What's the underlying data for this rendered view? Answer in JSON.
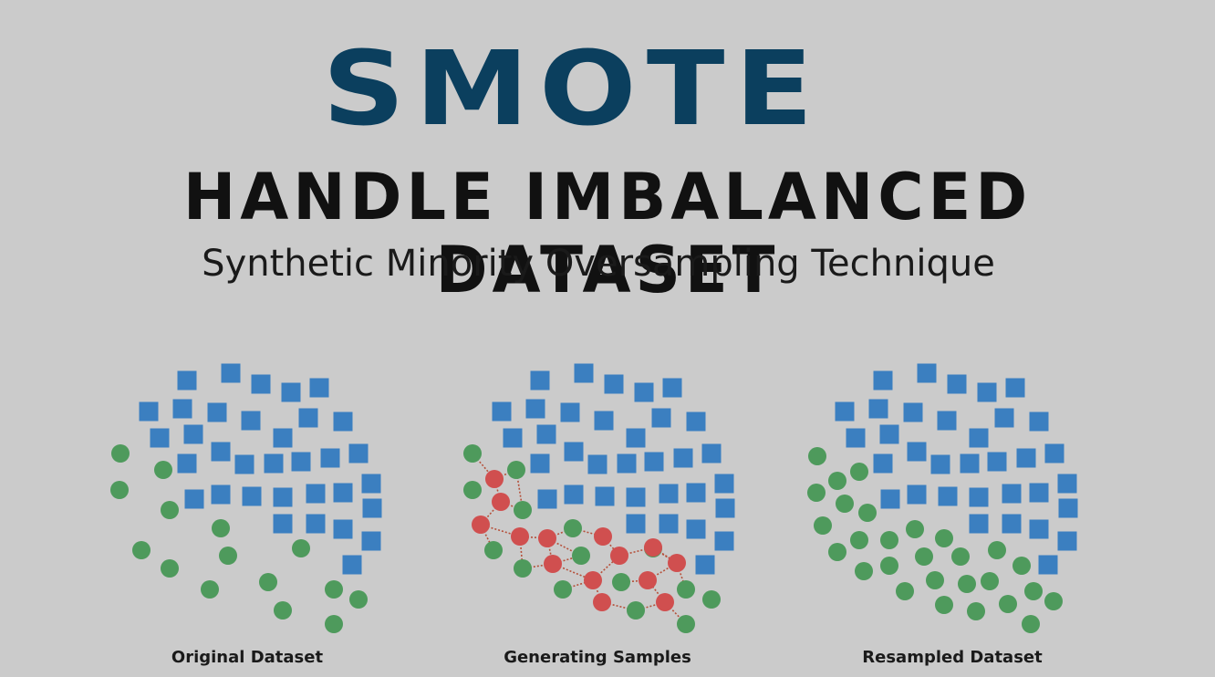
{
  "header": {
    "title": "SMOTE",
    "heading": "HANDLE IMBALANCED DATASET",
    "subtitle": "Synthetic Minority Oversampling Technique"
  },
  "colors": {
    "background": "#cbcbcb",
    "title": "#0b3f5e",
    "majority": "#3b7fc0",
    "minority": "#4e9a5c",
    "synthetic": "#d04f4f",
    "link": "#b5503a"
  },
  "panels": [
    {
      "id": "original",
      "label": "Original Dataset",
      "center_x": 271
    },
    {
      "id": "generating",
      "label": "Generating Samples",
      "center_x": 655
    },
    {
      "id": "resampled",
      "label": "Resampled Dataset",
      "center_x": 1044
    }
  ]
}
